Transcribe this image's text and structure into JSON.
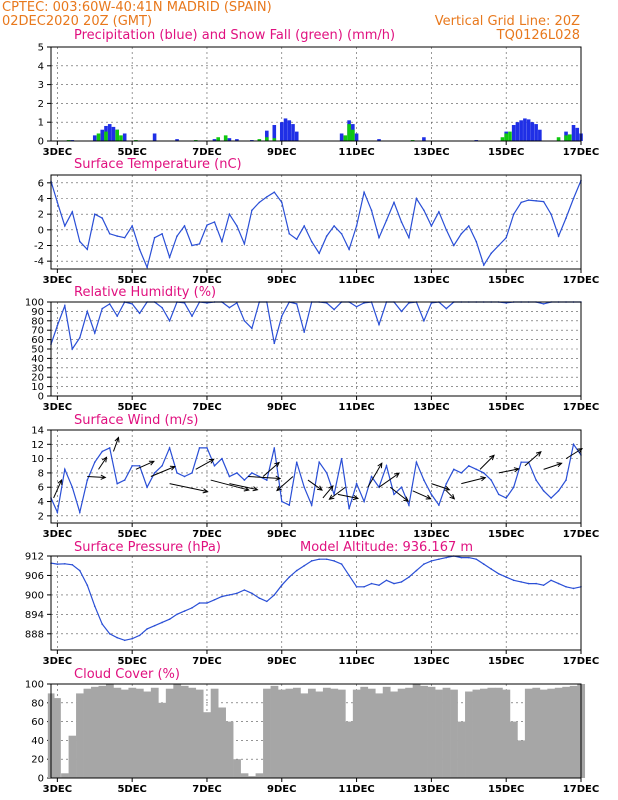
{
  "header": {
    "line1_left": "CPTEC:   003:60W-40:41N   MADRID (SPAIN)",
    "line2_left": "02DEC2020 20Z (GMT)",
    "line1_right": "Vertical Grid Line: 20Z",
    "line2_right": "TQ0126L028"
  },
  "colors": {
    "header": "#e8781c",
    "panel_title": "#e0107f",
    "series": "#2a4fd6",
    "rain": "#1f2fe6",
    "snow": "#10c810",
    "cloud": "#a6a6a6",
    "grid": "#555555"
  },
  "x_axis": {
    "start": "02DEC2020 20Z",
    "end": "17DEC2020 00Z",
    "tick_labels": [
      "3DEC",
      "5DEC",
      "7DEC",
      "9DEC",
      "11DEC",
      "13DEC",
      "15DEC",
      "17DEC"
    ],
    "tick_day_offsets": [
      1,
      3,
      5,
      7,
      9,
      11,
      13,
      15
    ],
    "x_range_days": [
      0.83,
      15.0
    ]
  },
  "chart_data": [
    {
      "type": "bar",
      "title": "Precipitation (blue) and Snow Fall (green) (mm/h)",
      "y_ticks": [
        0,
        1,
        2,
        3,
        4,
        5
      ],
      "ylim": [
        0,
        5
      ],
      "series": [
        {
          "name": "Precipitation",
          "color": "#1f2fe6",
          "points": [
            [
              1.4,
              0.05
            ],
            [
              2.0,
              0.3
            ],
            [
              2.2,
              0.6
            ],
            [
              2.3,
              0.8
            ],
            [
              2.4,
              0.9
            ],
            [
              2.5,
              0.75
            ],
            [
              2.6,
              0.6
            ],
            [
              2.8,
              0.4
            ],
            [
              3.6,
              0.4
            ],
            [
              4.2,
              0.1
            ],
            [
              5.2,
              0.1
            ],
            [
              5.6,
              0.15
            ],
            [
              5.8,
              0.1
            ],
            [
              6.2,
              0.05
            ],
            [
              6.6,
              0.55
            ],
            [
              6.8,
              0.85
            ],
            [
              7.0,
              1.0
            ],
            [
              7.1,
              1.2
            ],
            [
              7.2,
              1.1
            ],
            [
              7.3,
              0.9
            ],
            [
              7.4,
              0.5
            ],
            [
              8.6,
              0.4
            ],
            [
              8.8,
              1.1
            ],
            [
              8.9,
              0.9
            ],
            [
              9.0,
              0.4
            ],
            [
              9.6,
              0.1
            ],
            [
              10.8,
              0.2
            ],
            [
              12.2,
              0.05
            ],
            [
              13.0,
              0.5
            ],
            [
              13.2,
              0.85
            ],
            [
              13.3,
              1.0
            ],
            [
              13.4,
              1.1
            ],
            [
              13.5,
              1.2
            ],
            [
              13.6,
              1.15
            ],
            [
              13.7,
              1.0
            ],
            [
              13.8,
              0.9
            ],
            [
              13.9,
              0.6
            ],
            [
              14.6,
              0.5
            ],
            [
              14.8,
              0.85
            ],
            [
              14.9,
              0.7
            ],
            [
              15.0,
              0.4
            ]
          ]
        },
        {
          "name": "Snow Fall",
          "color": "#10c810",
          "points": [
            [
              1.3,
              0.05
            ],
            [
              2.1,
              0.4
            ],
            [
              2.3,
              0.5
            ],
            [
              2.6,
              0.6
            ],
            [
              2.7,
              0.3
            ],
            [
              3.1,
              0.05
            ],
            [
              4.7,
              0.05
            ],
            [
              5.3,
              0.2
            ],
            [
              5.5,
              0.3
            ],
            [
              6.4,
              0.1
            ],
            [
              6.6,
              0.2
            ],
            [
              6.8,
              0.15
            ],
            [
              8.7,
              0.3
            ],
            [
              8.8,
              0.9
            ],
            [
              8.9,
              0.6
            ],
            [
              10.5,
              0.05
            ],
            [
              12.9,
              0.2
            ],
            [
              13.0,
              0.4
            ],
            [
              13.1,
              0.5
            ],
            [
              14.4,
              0.2
            ],
            [
              14.6,
              0.3
            ],
            [
              14.7,
              0.35
            ]
          ]
        }
      ]
    },
    {
      "type": "line",
      "title": "Surface Temperature (nC)",
      "y_ticks": [
        -4,
        -2,
        0,
        2,
        4,
        6
      ],
      "ylim": [
        -5,
        7
      ],
      "x": [
        0.83,
        1.0,
        1.2,
        1.4,
        1.6,
        1.8,
        2.0,
        2.2,
        2.4,
        2.6,
        2.8,
        3.0,
        3.2,
        3.4,
        3.6,
        3.8,
        4.0,
        4.2,
        4.4,
        4.6,
        4.8,
        5.0,
        5.2,
        5.4,
        5.6,
        5.8,
        6.0,
        6.2,
        6.4,
        6.6,
        6.8,
        7.0,
        7.2,
        7.4,
        7.6,
        7.8,
        8.0,
        8.2,
        8.4,
        8.6,
        8.8,
        9.0,
        9.2,
        9.4,
        9.6,
        9.8,
        10.0,
        10.2,
        10.4,
        10.6,
        10.8,
        11.0,
        11.2,
        11.4,
        11.6,
        11.8,
        12.0,
        12.2,
        12.4,
        12.6,
        12.8,
        13.0,
        13.2,
        13.4,
        13.6,
        13.8,
        14.0,
        14.2,
        14.4,
        14.6,
        14.8,
        15.0
      ],
      "values": [
        6.2,
        3.5,
        0.5,
        2.3,
        -1.5,
        -2.5,
        2.0,
        1.5,
        -0.5,
        -0.8,
        -1.0,
        0.5,
        -2.5,
        -4.8,
        -1.0,
        -0.5,
        -3.5,
        -0.8,
        0.5,
        -2.0,
        -1.8,
        0.6,
        1.0,
        -1.5,
        2.0,
        0.5,
        -1.8,
        2.5,
        3.5,
        4.2,
        4.8,
        3.5,
        -0.5,
        -1.2,
        0.5,
        -1.5,
        -3.0,
        -0.8,
        0.5,
        -0.5,
        -2.5,
        0.5,
        4.8,
        2.5,
        -1.0,
        1.2,
        3.5,
        1.0,
        -1.0,
        4.0,
        2.5,
        0.5,
        2.3,
        0.0,
        -2.0,
        -0.5,
        0.5,
        -1.5,
        -4.5,
        -3.0,
        -2.0,
        -1.0,
        2.0,
        3.5,
        3.8,
        3.7,
        3.6,
        2.0,
        -0.8,
        1.5,
        4.0,
        6.3
      ]
    },
    {
      "type": "line",
      "title": "Relative Humidity (%)",
      "y_ticks": [
        0,
        10,
        20,
        30,
        40,
        50,
        60,
        70,
        80,
        90,
        100
      ],
      "ylim": [
        0,
        100
      ],
      "x": [
        0.83,
        1.0,
        1.2,
        1.4,
        1.6,
        1.8,
        2.0,
        2.2,
        2.4,
        2.6,
        2.8,
        3.0,
        3.2,
        3.4,
        3.6,
        3.8,
        4.0,
        4.2,
        4.4,
        4.6,
        4.8,
        5.0,
        5.2,
        5.4,
        5.6,
        5.8,
        6.0,
        6.2,
        6.4,
        6.6,
        6.8,
        7.0,
        7.2,
        7.4,
        7.6,
        7.8,
        8.0,
        8.2,
        8.4,
        8.6,
        8.8,
        9.0,
        9.2,
        9.4,
        9.6,
        9.8,
        10.0,
        10.2,
        10.4,
        10.6,
        10.8,
        11.0,
        11.2,
        11.4,
        11.6,
        11.8,
        12.0,
        12.2,
        12.4,
        12.6,
        12.8,
        13.0,
        13.2,
        13.4,
        13.6,
        13.8,
        14.0,
        14.2,
        14.4,
        14.6,
        14.8,
        15.0
      ],
      "values": [
        55,
        75,
        96,
        50,
        62,
        90,
        67,
        93,
        98,
        85,
        100,
        98,
        88,
        100,
        100,
        94,
        80,
        100,
        99,
        85,
        100,
        99,
        100,
        100,
        94,
        99,
        80,
        72,
        100,
        100,
        56,
        85,
        100,
        98,
        68,
        100,
        100,
        99,
        92,
        100,
        100,
        95,
        99,
        100,
        76,
        100,
        100,
        90,
        99,
        100,
        80,
        99,
        100,
        93,
        100,
        100,
        100,
        100,
        100,
        100,
        100,
        99,
        100,
        100,
        100,
        100,
        98,
        100,
        100,
        100,
        100,
        100
      ]
    },
    {
      "type": "line",
      "title": "Surface Wind (m/s)",
      "y_ticks": [
        2,
        4,
        6,
        8,
        10,
        12,
        14
      ],
      "ylim": [
        1,
        14
      ],
      "x": [
        0.83,
        1.0,
        1.2,
        1.4,
        1.6,
        1.8,
        2.0,
        2.2,
        2.4,
        2.6,
        2.8,
        3.0,
        3.2,
        3.4,
        3.6,
        3.8,
        4.0,
        4.2,
        4.4,
        4.6,
        4.8,
        5.0,
        5.2,
        5.4,
        5.6,
        5.8,
        6.0,
        6.2,
        6.4,
        6.6,
        6.8,
        7.0,
        7.2,
        7.4,
        7.6,
        7.8,
        8.0,
        8.2,
        8.4,
        8.6,
        8.8,
        9.0,
        9.2,
        9.4,
        9.6,
        9.8,
        10.0,
        10.2,
        10.4,
        10.6,
        10.8,
        11.0,
        11.2,
        11.4,
        11.6,
        11.8,
        12.0,
        12.2,
        12.4,
        12.6,
        12.8,
        13.0,
        13.2,
        13.4,
        13.6,
        13.8,
        14.0,
        14.2,
        14.4,
        14.6,
        14.8,
        15.0
      ],
      "values": [
        4.5,
        2.5,
        8.5,
        6.0,
        2.5,
        7.0,
        9.5,
        11.0,
        11.5,
        6.5,
        7.0,
        9.0,
        9.0,
        6.0,
        8.0,
        9.0,
        11.5,
        8.0,
        7.5,
        8.0,
        11.5,
        11.5,
        9.0,
        10.0,
        7.5,
        8.0,
        7.0,
        8.0,
        7.5,
        7.0,
        11.5,
        4.0,
        3.5,
        9.5,
        6.0,
        3.5,
        9.5,
        8.0,
        5.0,
        10.0,
        3.0,
        6.5,
        4.0,
        7.5,
        6.0,
        9.0,
        5.0,
        6.0,
        3.5,
        9.5,
        7.0,
        5.0,
        3.5,
        6.5,
        8.5,
        8.0,
        9.0,
        8.5,
        8.0,
        7.0,
        5.0,
        4.5,
        6.0,
        9.5,
        9.5,
        7.0,
        5.5,
        4.5,
        5.5,
        7.0,
        12.0,
        10.5
      ],
      "vectors": [
        {
          "day": 0.9,
          "speed": 4.5,
          "u": 8,
          "v": 18
        },
        {
          "day": 1.8,
          "speed": 7.5,
          "u": 18,
          "v": -1
        },
        {
          "day": 2.1,
          "speed": 8.5,
          "u": 8,
          "v": 12
        },
        {
          "day": 2.5,
          "speed": 11.0,
          "u": 5,
          "v": 14
        },
        {
          "day": 3.1,
          "speed": 8.5,
          "u": 18,
          "v": 8
        },
        {
          "day": 3.5,
          "speed": 7.5,
          "u": 24,
          "v": 10
        },
        {
          "day": 4.0,
          "speed": 6.5,
          "u": 38,
          "v": -8
        },
        {
          "day": 4.7,
          "speed": 8.5,
          "u": 18,
          "v": 10
        },
        {
          "day": 5.1,
          "speed": 7.0,
          "u": 38,
          "v": -10
        },
        {
          "day": 5.6,
          "speed": 6.5,
          "u": 28,
          "v": -6
        },
        {
          "day": 6.1,
          "speed": 7.5,
          "u": 32,
          "v": -2
        },
        {
          "day": 6.5,
          "speed": 7.5,
          "u": 16,
          "v": 14
        },
        {
          "day": 7.3,
          "speed": 7.5,
          "u": -16,
          "v": -14
        },
        {
          "day": 7.7,
          "speed": 7.0,
          "u": 14,
          "v": -10
        },
        {
          "day": 8.1,
          "speed": 4.5,
          "u": 10,
          "v": 12
        },
        {
          "day": 8.5,
          "speed": 5.0,
          "u": 20,
          "v": -4
        },
        {
          "day": 8.7,
          "speed": 6.0,
          "u": -16,
          "v": -12
        },
        {
          "day": 9.3,
          "speed": 6.0,
          "u": 14,
          "v": 24
        },
        {
          "day": 9.6,
          "speed": 6.0,
          "u": 20,
          "v": 14
        },
        {
          "day": 9.9,
          "speed": 6.0,
          "u": 18,
          "v": -14
        },
        {
          "day": 10.5,
          "speed": 5.5,
          "u": 18,
          "v": -8
        },
        {
          "day": 11.0,
          "speed": 6.5,
          "u": 18,
          "v": -6
        },
        {
          "day": 11.4,
          "speed": 5.5,
          "u": 8,
          "v": -8
        },
        {
          "day": 11.8,
          "speed": 6.5,
          "u": 24,
          "v": 6
        },
        {
          "day": 12.3,
          "speed": 8.5,
          "u": 14,
          "v": 14
        },
        {
          "day": 12.8,
          "speed": 8.0,
          "u": 20,
          "v": 4
        },
        {
          "day": 13.5,
          "speed": 9.0,
          "u": 16,
          "v": 14
        },
        {
          "day": 14.0,
          "speed": 8.5,
          "u": 18,
          "v": 6
        },
        {
          "day": 14.6,
          "speed": 10.0,
          "u": 16,
          "v": 10
        }
      ]
    },
    {
      "type": "line",
      "title": "Surface Pressure (hPa)",
      "annotation": "Model Altitude: 936.167 m",
      "y_ticks": [
        888,
        894,
        900,
        906,
        912
      ],
      "ylim": [
        883,
        912
      ],
      "x": [
        0.83,
        1.0,
        1.2,
        1.4,
        1.6,
        1.8,
        2.0,
        2.2,
        2.4,
        2.6,
        2.8,
        3.0,
        3.2,
        3.4,
        3.6,
        3.8,
        4.0,
        4.2,
        4.4,
        4.6,
        4.8,
        5.0,
        5.2,
        5.4,
        5.6,
        5.8,
        6.0,
        6.2,
        6.4,
        6.6,
        6.8,
        7.0,
        7.2,
        7.4,
        7.6,
        7.8,
        8.0,
        8.2,
        8.4,
        8.6,
        8.8,
        9.0,
        9.2,
        9.4,
        9.6,
        9.8,
        10.0,
        10.2,
        10.4,
        10.6,
        10.8,
        11.0,
        11.2,
        11.4,
        11.6,
        11.8,
        12.0,
        12.2,
        12.4,
        12.6,
        12.8,
        13.0,
        13.2,
        13.4,
        13.6,
        13.8,
        14.0,
        14.2,
        14.4,
        14.6,
        14.8,
        15.0
      ],
      "values": [
        909.8,
        909.5,
        909.6,
        909.3,
        907.5,
        903.0,
        896.5,
        891.0,
        888.0,
        886.8,
        886.0,
        886.5,
        887.5,
        889.5,
        890.5,
        891.5,
        892.5,
        894.0,
        895.0,
        896.0,
        897.5,
        897.5,
        898.5,
        899.5,
        900.0,
        900.5,
        901.5,
        900.5,
        899.0,
        898.0,
        900.0,
        903.0,
        905.5,
        907.5,
        909.0,
        910.5,
        911.0,
        911.0,
        910.5,
        909.5,
        906.0,
        902.5,
        902.5,
        903.5,
        903.0,
        904.5,
        903.5,
        904.0,
        905.5,
        907.5,
        909.5,
        910.5,
        911.0,
        911.5,
        912.0,
        911.5,
        911.5,
        911.0,
        909.5,
        908.0,
        906.5,
        905.5,
        904.5,
        904.0,
        903.5,
        903.5,
        903.0,
        904.5,
        903.5,
        902.5,
        902.0,
        902.5
      ]
    },
    {
      "type": "bar",
      "title": "Cloud Cover (%)",
      "y_ticks": [
        0,
        20,
        40,
        60,
        80,
        100
      ],
      "ylim": [
        0,
        100
      ],
      "x": [
        0.83,
        1.0,
        1.2,
        1.4,
        1.6,
        1.8,
        2.0,
        2.2,
        2.4,
        2.6,
        2.8,
        3.0,
        3.2,
        3.4,
        3.6,
        3.8,
        4.0,
        4.2,
        4.4,
        4.6,
        4.8,
        5.0,
        5.2,
        5.4,
        5.6,
        5.8,
        6.0,
        6.2,
        6.4,
        6.6,
        6.8,
        7.0,
        7.2,
        7.4,
        7.6,
        7.8,
        8.0,
        8.2,
        8.4,
        8.6,
        8.8,
        9.0,
        9.2,
        9.4,
        9.6,
        9.8,
        10.0,
        10.2,
        10.4,
        10.6,
        10.8,
        11.0,
        11.2,
        11.4,
        11.6,
        11.8,
        12.0,
        12.2,
        12.4,
        12.6,
        12.8,
        13.0,
        13.2,
        13.4,
        13.6,
        13.8,
        14.0,
        14.2,
        14.4,
        14.6,
        14.8,
        15.0
      ],
      "values": [
        90,
        85,
        5,
        45,
        90,
        95,
        97,
        98,
        100,
        96,
        94,
        96,
        95,
        92,
        96,
        80,
        95,
        100,
        98,
        96,
        94,
        70,
        95,
        75,
        60,
        20,
        5,
        2,
        5,
        95,
        98,
        94,
        95,
        96,
        90,
        95,
        92,
        96,
        95,
        94,
        60,
        94,
        97,
        95,
        90,
        97,
        92,
        95,
        96,
        100,
        98,
        97,
        94,
        96,
        94,
        60,
        92,
        94,
        95,
        96,
        96,
        94,
        60,
        40,
        95,
        96,
        94,
        95,
        96,
        97,
        98,
        100
      ]
    }
  ]
}
